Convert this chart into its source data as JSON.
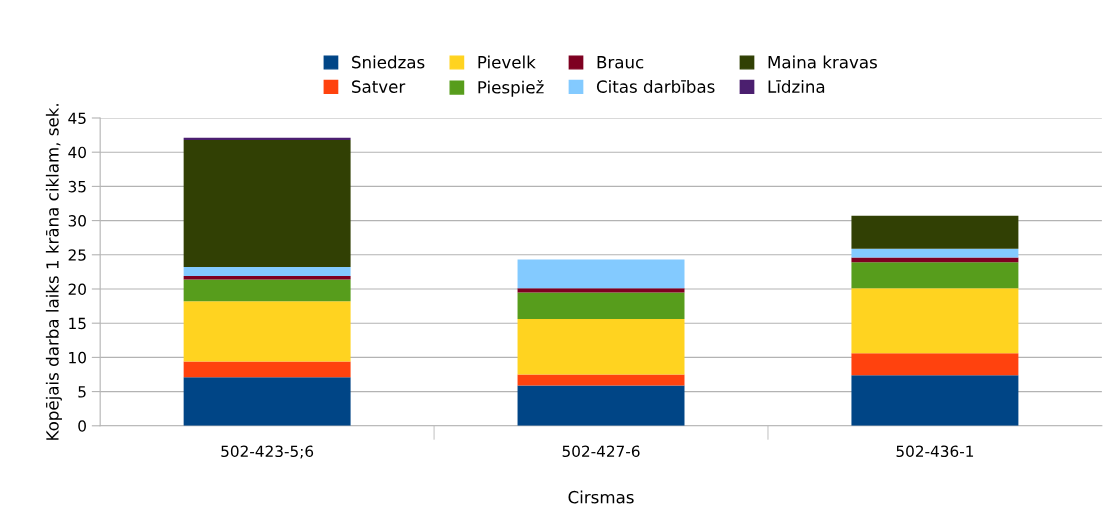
{
  "chart_data": {
    "type": "bar",
    "stacked": true,
    "xlabel": "Cirsmas",
    "ylabel": "Kopējais darba laiks 1 krāna ciklam, sek.",
    "categories": [
      "502-423-5;6",
      "502-427-6",
      "502-436-1"
    ],
    "series": [
      {
        "name": "Sniedzas",
        "color": "#004586",
        "values": [
          7.1,
          5.9,
          7.4
        ]
      },
      {
        "name": "Satver",
        "color": "#ff420e",
        "values": [
          2.3,
          1.6,
          3.2
        ]
      },
      {
        "name": "Pievelk",
        "color": "#ffd320",
        "values": [
          8.8,
          8.1,
          9.5
        ]
      },
      {
        "name": "Piespiež",
        "color": "#579d1c",
        "values": [
          3.2,
          3.9,
          3.8
        ]
      },
      {
        "name": "Brauc",
        "color": "#7e0021",
        "values": [
          0.5,
          0.6,
          0.7
        ]
      },
      {
        "name": "Citas darbības",
        "color": "#83caff",
        "values": [
          1.3,
          4.2,
          1.3
        ]
      },
      {
        "name": "Maina kravas",
        "color": "#314004",
        "values": [
          18.6,
          null,
          4.8
        ]
      },
      {
        "name": "Līdzina",
        "color": "#4b1f6f",
        "values": [
          0.3,
          null,
          null
        ]
      }
    ],
    "ylim": [
      0,
      45
    ],
    "yticks": [
      0,
      5,
      10,
      15,
      20,
      25,
      30,
      35,
      40,
      45
    ],
    "grid": "y",
    "legend": "top"
  }
}
